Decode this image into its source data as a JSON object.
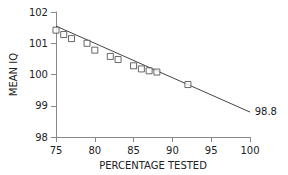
{
  "chart_data": {
    "type": "scatter",
    "title": "",
    "xlabel": "PERCENTAGE TESTED",
    "ylabel": "MEAN IQ",
    "xlim": [
      75,
      100
    ],
    "ylim": [
      98,
      102
    ],
    "xticks": [
      75,
      80,
      85,
      90,
      95,
      100
    ],
    "yticks": [
      98,
      99,
      100,
      101,
      102
    ],
    "grid": false,
    "series": [
      {
        "type": "line",
        "color": "#444444",
        "line_style": "solid",
        "x": [
          75,
          100
        ],
        "values": [
          101.55,
          98.8
        ]
      },
      {
        "type": "scatter",
        "color": "#444444",
        "marker": "square",
        "x": [
          75,
          76,
          77,
          79,
          80,
          82,
          83,
          85,
          86,
          87,
          88,
          92
        ],
        "values": [
          101.42,
          101.28,
          101.15,
          101.0,
          100.78,
          100.58,
          100.48,
          100.28,
          100.18,
          100.12,
          100.08,
          99.68
        ]
      }
    ],
    "annotations": [
      {
        "text": "98.8",
        "x": 100.6,
        "y": 98.82
      }
    ]
  }
}
